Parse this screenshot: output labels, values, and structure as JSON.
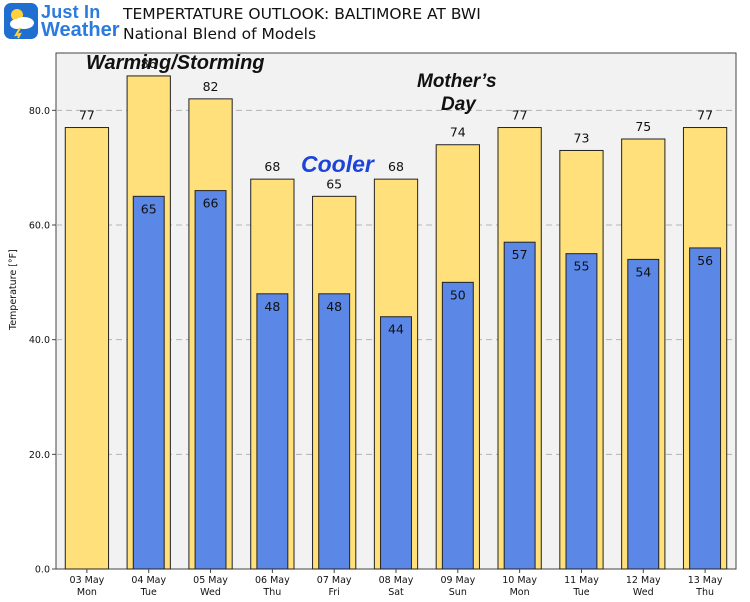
{
  "logo": {
    "line1": "Just In",
    "line2": "Weather"
  },
  "header": {
    "title": "TEMPERTATURE OUTLOOK: BALTIMORE AT BWI",
    "subtitle": "National Blend of Models"
  },
  "annotations": {
    "warming": "Warming/Storming",
    "mothers_day_line1": "Mother’s",
    "mothers_day_line2": "Day",
    "cooler": "Cooler"
  },
  "colors": {
    "high": "#ffe07a",
    "low": "#5b87e6",
    "plot_bg": "#f2f2f2",
    "cooler_text": "#1d44d8",
    "logo_blue": "#2a7be0"
  },
  "chart_data": {
    "type": "bar",
    "ylabel": "Temperature [°F]",
    "ylim": [
      0,
      90
    ],
    "yticks": [
      "0.0",
      "20.0",
      "40.0",
      "60.0",
      "80.0"
    ],
    "ytick_values": [
      0,
      20,
      40,
      60,
      80
    ],
    "grid": true,
    "categories": [
      [
        "03 May",
        "Mon"
      ],
      [
        "04 May",
        "Tue"
      ],
      [
        "05 May",
        "Wed"
      ],
      [
        "06 May",
        "Thu"
      ],
      [
        "07 May",
        "Fri"
      ],
      [
        "08 May",
        "Sat"
      ],
      [
        "09 May",
        "Sun"
      ],
      [
        "10 May",
        "Mon"
      ],
      [
        "11 May",
        "Tue"
      ],
      [
        "12 May",
        "Wed"
      ],
      [
        "13 May",
        "Thu"
      ]
    ],
    "series": [
      {
        "values": [
          77,
          86,
          82,
          68,
          65,
          68,
          74,
          77,
          73,
          75,
          77
        ]
      },
      {
        "values": [
          null,
          65,
          66,
          48,
          48,
          44,
          50,
          57,
          55,
          54,
          56
        ]
      }
    ]
  }
}
